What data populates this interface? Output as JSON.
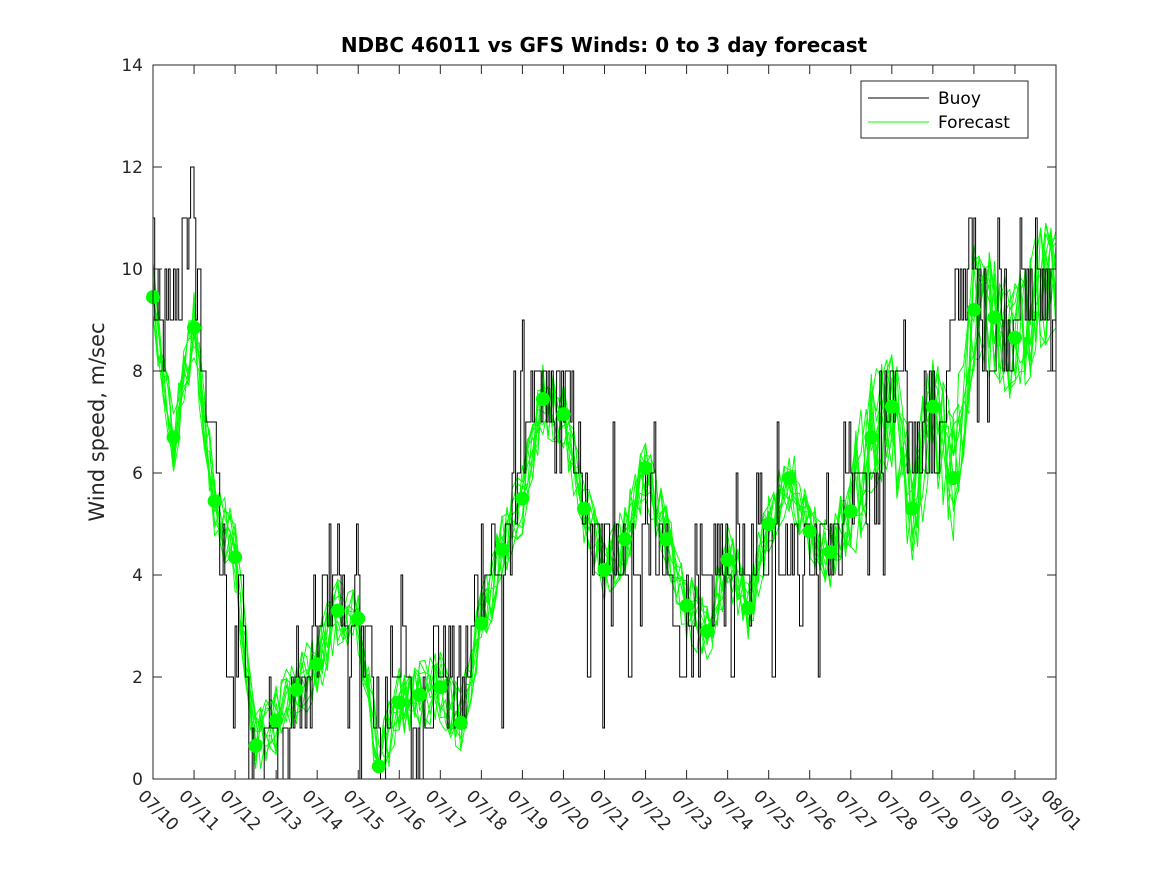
{
  "chart_data": {
    "type": "line",
    "title": "NDBC 46011 vs GFS Winds: 0 to 3 day forecast",
    "ylabel": "Wind speed, m/sec",
    "xlabel": "",
    "ylim": [
      0,
      14
    ],
    "yticks": [
      0,
      2,
      4,
      6,
      8,
      10,
      12,
      14
    ],
    "xtick_labels": [
      "07/10",
      "07/11",
      "07/12",
      "07/13",
      "07/14",
      "07/15",
      "07/16",
      "07/17",
      "07/18",
      "07/19",
      "07/20",
      "07/21",
      "07/22",
      "07/23",
      "07/24",
      "07/25",
      "07/26",
      "07/27",
      "07/28",
      "07/29",
      "07/30",
      "07/31",
      "08/01"
    ],
    "xlim_days": [
      0,
      22
    ],
    "legend": {
      "placement": "top-right",
      "entries": [
        {
          "name": "Buoy",
          "color": "#000000"
        },
        {
          "name": "Forecast",
          "color": "#00ff00"
        }
      ]
    },
    "colors": {
      "buoy": "#000000",
      "forecast": "#00ff00",
      "marker": "#00ff00"
    },
    "buoy_key_points": [
      [
        0.0,
        11
      ],
      [
        0.05,
        9
      ],
      [
        0.2,
        8.5
      ],
      [
        0.5,
        9
      ],
      [
        0.7,
        10
      ],
      [
        0.85,
        11
      ],
      [
        0.95,
        12
      ],
      [
        1.05,
        10
      ],
      [
        1.2,
        8
      ],
      [
        1.4,
        7
      ],
      [
        1.6,
        5.5
      ],
      [
        1.75,
        3
      ],
      [
        1.85,
        1.5
      ],
      [
        2.0,
        2.5
      ],
      [
        2.15,
        4
      ],
      [
        2.3,
        2
      ],
      [
        2.45,
        1
      ],
      [
        2.6,
        0
      ],
      [
        2.75,
        1.5
      ],
      [
        2.9,
        1
      ],
      [
        3.05,
        0
      ],
      [
        3.2,
        1
      ],
      [
        3.4,
        1.5
      ],
      [
        3.55,
        2
      ],
      [
        3.75,
        1
      ],
      [
        3.9,
        2.5
      ],
      [
        4.05,
        3
      ],
      [
        4.2,
        3.5
      ],
      [
        4.35,
        4.5
      ],
      [
        4.5,
        3
      ],
      [
        4.65,
        3.5
      ],
      [
        4.8,
        2
      ],
      [
        4.95,
        3.5
      ],
      [
        5.1,
        3.5
      ],
      [
        5.25,
        3
      ],
      [
        5.4,
        1
      ],
      [
        5.55,
        0.5
      ],
      [
        5.7,
        1.5
      ],
      [
        5.85,
        2.5
      ],
      [
        6.0,
        3
      ],
      [
        6.15,
        2
      ],
      [
        6.3,
        1
      ],
      [
        6.45,
        0.5
      ],
      [
        6.6,
        1.5
      ],
      [
        6.75,
        2
      ],
      [
        6.9,
        2.5
      ],
      [
        7.05,
        2.5
      ],
      [
        7.2,
        2
      ],
      [
        7.35,
        1.5
      ],
      [
        7.5,
        1.5
      ],
      [
        7.65,
        2
      ],
      [
        7.8,
        3
      ],
      [
        7.95,
        4
      ],
      [
        8.1,
        4.5
      ],
      [
        8.25,
        4.5
      ],
      [
        8.4,
        4
      ],
      [
        8.55,
        4
      ],
      [
        8.7,
        4.5
      ],
      [
        8.85,
        6
      ],
      [
        9.0,
        7.5
      ],
      [
        9.15,
        7.5
      ],
      [
        9.3,
        7
      ],
      [
        9.45,
        7.5
      ],
      [
        9.6,
        7.5
      ],
      [
        9.75,
        7
      ],
      [
        9.9,
        7.5
      ],
      [
        10.05,
        7
      ],
      [
        10.2,
        7
      ],
      [
        10.35,
        6
      ],
      [
        10.5,
        5
      ],
      [
        10.65,
        4
      ],
      [
        10.8,
        4.5
      ],
      [
        10.95,
        5.5
      ],
      [
        11.1,
        4.5
      ],
      [
        11.25,
        4
      ],
      [
        11.4,
        5
      ],
      [
        11.55,
        4
      ],
      [
        11.7,
        4
      ],
      [
        11.85,
        4
      ],
      [
        12.0,
        5
      ],
      [
        12.15,
        5
      ],
      [
        12.3,
        4.5
      ],
      [
        12.45,
        4
      ],
      [
        12.6,
        3.5
      ],
      [
        12.75,
        3
      ],
      [
        12.9,
        3
      ],
      [
        13.05,
        3
      ],
      [
        13.2,
        3.5
      ],
      [
        13.35,
        3.5
      ],
      [
        13.5,
        3
      ],
      [
        13.65,
        4
      ],
      [
        13.8,
        4.5
      ],
      [
        13.95,
        4.5
      ],
      [
        14.1,
        4.5
      ],
      [
        14.25,
        4
      ],
      [
        14.4,
        3.5
      ],
      [
        14.55,
        4
      ],
      [
        14.7,
        5
      ],
      [
        14.85,
        5
      ],
      [
        15.0,
        5
      ],
      [
        15.15,
        5
      ],
      [
        15.3,
        5
      ],
      [
        15.45,
        4.5
      ],
      [
        15.6,
        4.5
      ],
      [
        15.75,
        4
      ],
      [
        15.9,
        4.5
      ],
      [
        16.05,
        4
      ],
      [
        16.2,
        5
      ],
      [
        16.35,
        5.5
      ],
      [
        16.5,
        4.5
      ],
      [
        16.65,
        4.5
      ],
      [
        16.8,
        5.5
      ],
      [
        16.95,
        6
      ],
      [
        17.1,
        6
      ],
      [
        17.25,
        6
      ],
      [
        17.4,
        5.5
      ],
      [
        17.55,
        5.5
      ],
      [
        17.7,
        6.5
      ],
      [
        17.85,
        7.5
      ],
      [
        18.0,
        7
      ],
      [
        18.15,
        7.5
      ],
      [
        18.3,
        7.5
      ],
      [
        18.45,
        7
      ],
      [
        18.6,
        6.5
      ],
      [
        18.75,
        7.5
      ],
      [
        18.9,
        7
      ],
      [
        19.05,
        6.5
      ],
      [
        19.2,
        7.5
      ],
      [
        19.35,
        8
      ],
      [
        19.5,
        9
      ],
      [
        19.65,
        9
      ],
      [
        19.8,
        10
      ],
      [
        19.95,
        10.5
      ],
      [
        20.1,
        9
      ],
      [
        20.25,
        9
      ],
      [
        20.4,
        8
      ],
      [
        20.55,
        9
      ],
      [
        20.7,
        9
      ],
      [
        20.85,
        8.5
      ],
      [
        21.0,
        9.5
      ]
    ],
    "buoy_dips": [
      [
        1.05,
        8.5
      ],
      [
        2.35,
        0
      ],
      [
        2.55,
        0
      ],
      [
        3.1,
        0
      ],
      [
        3.3,
        0
      ],
      [
        5.05,
        0
      ],
      [
        5.6,
        0
      ],
      [
        6.3,
        0
      ],
      [
        6.55,
        0
      ],
      [
        7.6,
        1
      ],
      [
        8.5,
        1
      ],
      [
        10.6,
        2
      ],
      [
        10.95,
        1
      ],
      [
        11.6,
        2
      ],
      [
        12.85,
        2
      ],
      [
        13.3,
        2
      ],
      [
        14.1,
        2
      ],
      [
        15.1,
        2
      ],
      [
        16.2,
        2
      ],
      [
        17.4,
        4
      ],
      [
        17.8,
        4
      ],
      [
        19.1,
        6
      ],
      [
        19.3,
        7
      ],
      [
        20.1,
        7
      ],
      [
        20.9,
        8
      ]
    ],
    "buoy_spikes": [
      [
        0.3,
        10
      ],
      [
        0.95,
        12
      ],
      [
        3.55,
        2
      ],
      [
        4.5,
        5
      ],
      [
        6.05,
        4
      ],
      [
        8.8,
        8
      ],
      [
        9.7,
        8
      ],
      [
        11.2,
        7
      ],
      [
        12.2,
        7
      ],
      [
        14.2,
        6
      ],
      [
        15.2,
        7
      ],
      [
        16.4,
        6
      ],
      [
        17.7,
        8
      ],
      [
        18.1,
        8
      ],
      [
        19.9,
        11
      ],
      [
        20.6,
        11
      ],
      [
        21.5,
        10.5
      ]
    ],
    "forecast_daily_means": [
      [
        0.0,
        9.45
      ],
      [
        0.5,
        6.7
      ],
      [
        1.0,
        8.85
      ],
      [
        1.5,
        5.45
      ],
      [
        2.0,
        4.35
      ],
      [
        2.5,
        0.65
      ],
      [
        3.0,
        1.15
      ],
      [
        3.5,
        1.75
      ],
      [
        4.0,
        2.25
      ],
      [
        4.5,
        3.3
      ],
      [
        5.0,
        3.15
      ],
      [
        5.5,
        0.25
      ],
      [
        6.0,
        1.5
      ],
      [
        6.5,
        1.65
      ],
      [
        7.0,
        1.8
      ],
      [
        7.5,
        1.1
      ],
      [
        8.0,
        3.05
      ],
      [
        8.5,
        4.5
      ],
      [
        9.0,
        5.5
      ],
      [
        9.5,
        7.45
      ],
      [
        10.0,
        7.15
      ],
      [
        10.5,
        5.3
      ],
      [
        11.0,
        4.1
      ],
      [
        11.5,
        4.7
      ],
      [
        12.0,
        6.1
      ],
      [
        12.5,
        4.7
      ],
      [
        13.0,
        3.4
      ],
      [
        13.5,
        2.9
      ],
      [
        14.0,
        4.3
      ],
      [
        14.5,
        3.35
      ],
      [
        15.0,
        5.0
      ],
      [
        15.5,
        5.9
      ],
      [
        16.0,
        4.85
      ],
      [
        16.5,
        4.45
      ],
      [
        17.0,
        5.25
      ],
      [
        17.5,
        6.7
      ],
      [
        18.0,
        7.3
      ],
      [
        18.5,
        5.3
      ],
      [
        19.0,
        7.3
      ],
      [
        19.5,
        5.9
      ],
      [
        20.0,
        9.2
      ],
      [
        20.5,
        9.05
      ],
      [
        21.0,
        8.65
      ]
    ],
    "forecast_run_count": 10
  }
}
